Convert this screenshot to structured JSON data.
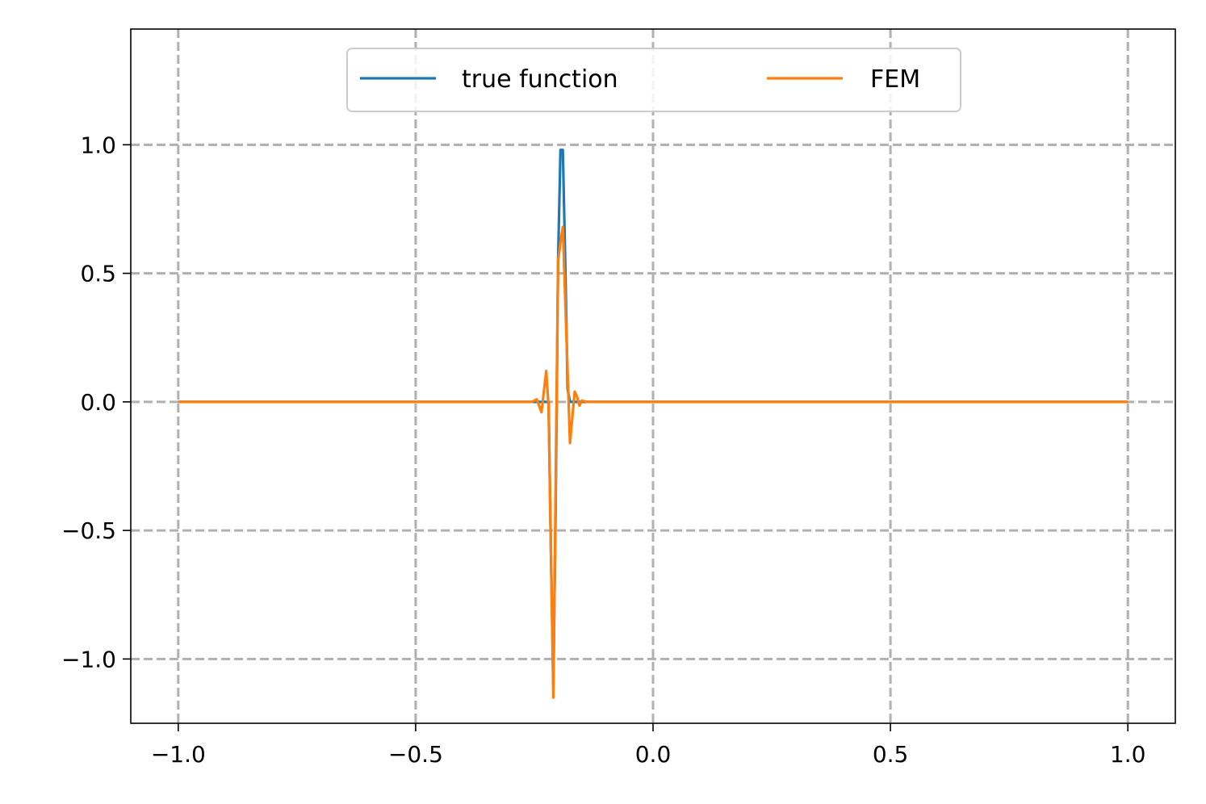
{
  "chart_data": {
    "type": "line",
    "title": "",
    "xlabel": "",
    "ylabel": "",
    "xlim": [
      -1.1,
      1.1
    ],
    "ylim": [
      -1.25,
      1.45
    ],
    "x_ticks": [
      -1.0,
      -0.5,
      0.0,
      0.5,
      1.0
    ],
    "x_tick_labels": [
      "−1.0",
      "−0.5",
      "0.0",
      "0.5",
      "1.0"
    ],
    "y_ticks": [
      1.0,
      0.5,
      0.0,
      -0.5,
      -1.0
    ],
    "y_tick_labels": [
      "1.0",
      "0.5",
      "0.0",
      "−0.5",
      "−1.0"
    ],
    "grid": true,
    "legend_position": "top-center",
    "series": [
      {
        "name": "true function",
        "color": "#1f77b4",
        "x": [
          -1.0,
          -0.24,
          -0.23,
          -0.22,
          -0.215,
          -0.21,
          -0.205,
          -0.2,
          -0.195,
          -0.19,
          -0.185,
          -0.18,
          -0.175,
          -0.17,
          -0.16,
          1.0
        ],
        "y": [
          0.0,
          0.0,
          0.0,
          0.0,
          -0.6,
          -1.1,
          -0.4,
          0.55,
          0.98,
          0.98,
          0.55,
          0.05,
          0.0,
          0.0,
          0.0,
          0.0
        ]
      },
      {
        "name": "FEM",
        "color": "#ff7f0e",
        "x": [
          -1.0,
          -0.27,
          -0.255,
          -0.245,
          -0.235,
          -0.225,
          -0.22,
          -0.21,
          -0.2,
          -0.195,
          -0.19,
          -0.18,
          -0.175,
          -0.17,
          -0.165,
          -0.16,
          -0.155,
          -0.15,
          -0.14,
          -0.13,
          1.0
        ],
        "y": [
          0.0,
          0.0,
          0.0,
          0.01,
          -0.04,
          0.12,
          -0.02,
          -1.15,
          0.55,
          0.62,
          0.68,
          0.12,
          -0.16,
          -0.06,
          0.04,
          0.02,
          -0.015,
          0.005,
          0.0,
          0.0,
          0.0
        ]
      }
    ]
  }
}
